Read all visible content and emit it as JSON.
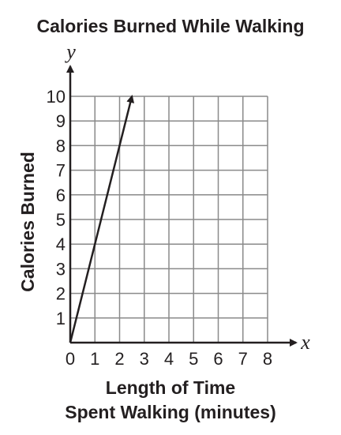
{
  "chart_data": {
    "type": "line",
    "title": "Calories Burned While Walking",
    "xlabel_lines": [
      "Length of Time",
      "Spent Walking (minutes)"
    ],
    "ylabel": "Calories Burned",
    "x_axis_letter": "x",
    "y_axis_letter": "y",
    "xlim": [
      0,
      8
    ],
    "ylim": [
      0,
      10
    ],
    "x_ticks": [
      "0",
      "1",
      "2",
      "3",
      "4",
      "5",
      "6",
      "7",
      "8"
    ],
    "y_ticks": [
      "1",
      "2",
      "3",
      "4",
      "5",
      "6",
      "7",
      "8",
      "9",
      "10"
    ],
    "grid": true,
    "series": [
      {
        "x": [
          0,
          2.5
        ],
        "y": [
          0,
          10
        ],
        "arrow_end": true
      }
    ],
    "colors": {
      "ink": "#231f20",
      "grid": "#8a8a8a",
      "background": "#ffffff"
    }
  }
}
